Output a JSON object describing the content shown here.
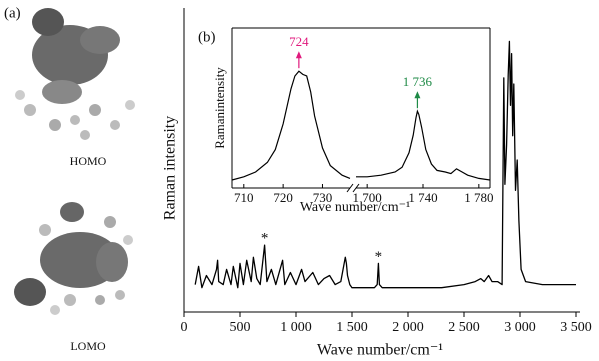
{
  "panel_a": {
    "label": "(a)",
    "top_caption": "HOMO",
    "bottom_caption": "LOMO"
  },
  "chart_data": [
    {
      "type": "line",
      "panel_label": "(b)",
      "xlabel": "Wave number/cm⁻¹",
      "ylabel": "Raman intensity",
      "xlim": [
        0,
        3500
      ],
      "xticks": [
        0,
        500,
        {
          "value": 1000,
          "label": "1 000"
        },
        {
          "value": 1500,
          "label": "1 500"
        },
        {
          "value": 2000,
          "label": "2 000"
        },
        {
          "value": 2500,
          "label": "2 500"
        },
        {
          "value": 3000,
          "label": "3 000"
        },
        {
          "value": 3500,
          "label": "3 500"
        }
      ],
      "ylim": [
        0,
        100
      ],
      "series": [
        {
          "color": "#000000",
          "x": [
            100,
            130,
            160,
            200,
            250,
            290,
            300,
            310,
            350,
            380,
            420,
            440,
            480,
            500,
            530,
            560,
            600,
            620,
            650,
            680,
            720,
            740,
            780,
            820,
            880,
            900,
            950,
            1000,
            1050,
            1080,
            1150,
            1200,
            1250,
            1300,
            1350,
            1400,
            1440,
            1450,
            1460,
            1480,
            1500,
            1600,
            1700,
            1725,
            1736,
            1745,
            1770,
            1900,
            2100,
            2300,
            2500,
            2600,
            2650,
            2680,
            2720,
            2750,
            2800,
            2840,
            2855,
            2865,
            2880,
            2895,
            2905,
            2915,
            2925,
            2935,
            2945,
            2960,
            2975,
            2990,
            3010,
            3050,
            3200,
            3500
          ],
          "values": [
            9,
            15,
            8,
            12,
            9,
            14,
            17,
            10,
            9,
            14,
            9,
            15,
            8,
            16,
            9,
            17,
            10,
            18,
            11,
            9,
            22,
            10,
            14,
            9,
            17,
            9,
            13,
            9,
            14,
            10,
            13,
            9,
            11,
            12,
            9,
            10,
            18,
            16,
            12,
            9,
            8,
            8,
            8,
            9,
            16,
            9,
            8,
            8,
            8,
            8,
            9,
            10,
            11,
            10,
            12,
            10,
            10,
            9,
            77,
            42,
            55,
            78,
            89,
            68,
            85,
            58,
            75,
            40,
            50,
            30,
            14,
            10,
            9,
            9
          ]
        }
      ],
      "annotations": [
        {
          "text": "*",
          "x": 720,
          "y": 22
        },
        {
          "text": "*",
          "x": 1736,
          "y": 16
        }
      ]
    },
    {
      "type": "broken-line",
      "xlabel": "Wave number/cm⁻¹",
      "ylabel": "Ramanintensity",
      "ylim": [
        0,
        100
      ],
      "segments": [
        {
          "xlim": [
            707,
            737
          ],
          "xticks": [
            710,
            720,
            730
          ],
          "color": "#000000",
          "x": [
            707,
            710,
            713,
            716,
            718,
            720,
            722,
            723,
            724,
            725,
            726,
            727,
            728,
            730,
            732,
            735,
            737
          ],
          "values": [
            5,
            7,
            10,
            16,
            24,
            40,
            62,
            70,
            73,
            71,
            70,
            60,
            45,
            25,
            14,
            8,
            6
          ]
        },
        {
          "xlim": [
            1692,
            1788
          ],
          "xticks": [
            {
              "value": 1700,
              "label": "1 700"
            },
            {
              "value": 1740,
              "label": "1 740"
            },
            {
              "value": 1780,
              "label": "1 780"
            }
          ],
          "color": "#000000",
          "x": [
            1692,
            1700,
            1710,
            1720,
            1725,
            1730,
            1733,
            1735,
            1736,
            1737,
            1739,
            1742,
            1746,
            1750,
            1756,
            1760,
            1764,
            1768,
            1772,
            1780,
            1788
          ],
          "values": [
            7,
            7,
            8,
            10,
            13,
            22,
            33,
            44,
            48,
            46,
            38,
            24,
            15,
            11,
            10,
            9,
            12,
            10,
            8,
            6,
            5
          ]
        }
      ],
      "annotations": [
        {
          "text": "724",
          "x": 724,
          "y": 73,
          "segment": 0,
          "color": "#e0197d"
        },
        {
          "text": "1 736",
          "x": 1736,
          "y": 48,
          "segment": 1,
          "color": "#1e8a46"
        }
      ]
    }
  ]
}
